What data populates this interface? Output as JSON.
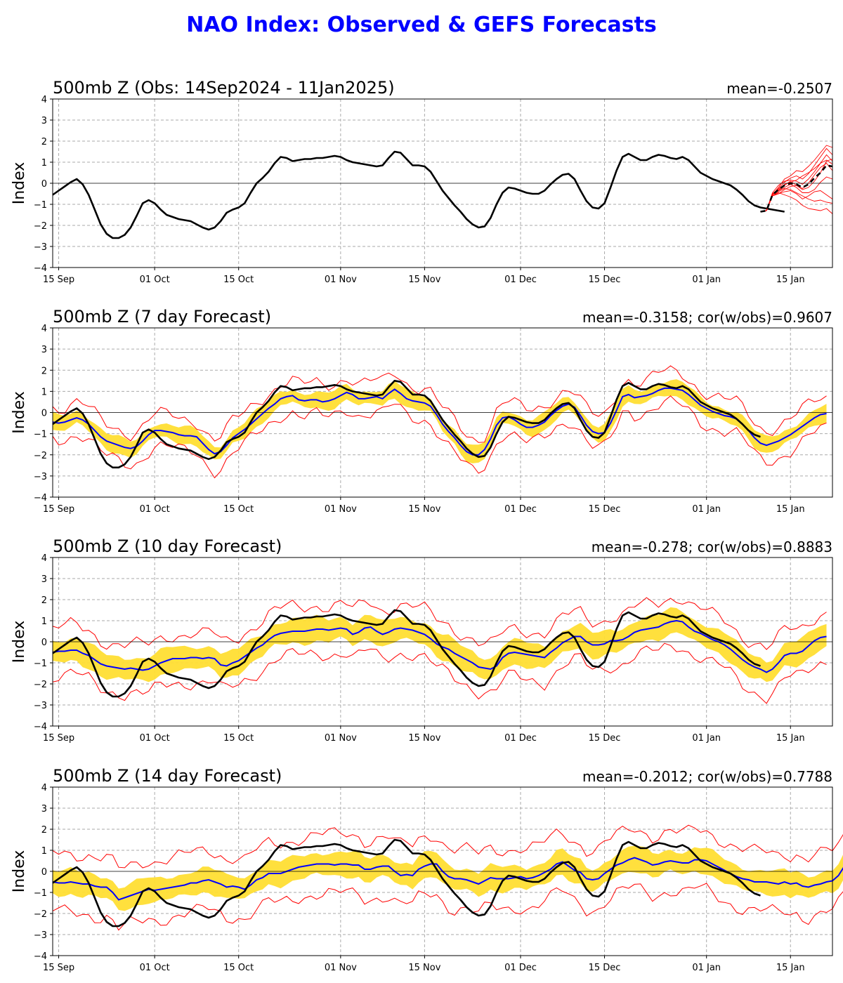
{
  "page": {
    "title": "NAO Index: Observed & GEFS Forecasts"
  },
  "chart_data": [
    {
      "type": "line",
      "title": "500mb Z (Obs: 14Sep2024 - 11Jan2025)",
      "stat": "mean=-0.2507",
      "ylabel": "Index",
      "x_ticks": [
        "15 Sep",
        "01 Oct",
        "15 Oct",
        "01 Nov",
        "15 Nov",
        "01 Dec",
        "15 Dec",
        "01 Jan",
        "15 Jan"
      ],
      "x_tick_days": [
        1,
        17,
        31,
        48,
        62,
        78,
        92,
        109,
        123
      ],
      "y_ticks": [
        -4,
        -3,
        -2,
        -1,
        0,
        1,
        2,
        3,
        4
      ],
      "xlim_days": [
        0,
        130
      ],
      "ylim": [
        -4,
        4
      ],
      "grid": true,
      "observed": [
        [
          -0.55,
          -0.35,
          -0.15,
          0.05,
          0.2,
          -0.05,
          -0.55,
          -1.25,
          -1.95,
          -2.4,
          -2.6,
          -2.6,
          -2.45,
          -2.1,
          -1.55,
          -0.95,
          -0.8,
          -0.95,
          -1.25,
          -1.5,
          -1.6,
          -1.7,
          -1.75,
          -1.8,
          -1.95,
          -2.1,
          -2.2,
          -2.1,
          -1.8,
          -1.4,
          -1.25,
          -1.15,
          -0.95,
          -0.45,
          0.0,
          0.25,
          0.55,
          0.95,
          1.25,
          1.2,
          1.05,
          1.1,
          1.15,
          1.15,
          1.2,
          1.2,
          1.25,
          1.3,
          1.25,
          1.1,
          1.0,
          0.95,
          0.9,
          0.85,
          0.8,
          0.85,
          1.2,
          1.5,
          1.45,
          1.15,
          0.85,
          0.85,
          0.8,
          0.55,
          0.1,
          -0.35,
          -0.7,
          -1.05,
          -1.35,
          -1.7,
          -1.95,
          -2.1,
          -2.05,
          -1.65,
          -1.0,
          -0.45,
          -0.2,
          -0.25,
          -0.35,
          -0.45,
          -0.5,
          -0.5,
          -0.35,
          -0.05,
          0.2,
          0.4,
          0.45,
          0.2,
          -0.35,
          -0.85,
          -1.15,
          -1.2,
          -0.95,
          -0.2,
          0.6,
          1.25,
          1.4,
          1.25,
          1.1,
          1.1,
          1.25,
          1.35,
          1.3,
          1.2,
          1.15,
          1.25,
          1.1,
          0.8,
          0.5,
          0.35,
          0.2,
          0.1,
          0.0,
          -0.1,
          -0.3,
          -0.55,
          -0.85,
          -1.05,
          -1.15,
          -1.2,
          -1.25,
          -1.3,
          -1.35
        ]
      ],
      "forecast_day_start": 118,
      "ensemble_mean_forecast": [
        -1.35,
        -1.3,
        -0.55,
        -0.3,
        -0.1,
        0.0,
        -0.05,
        -0.2,
        -0.05,
        0.25,
        0.5,
        0.85,
        0.8
      ],
      "ensemble_members": [
        [
          -1.35,
          -1.3,
          -0.6,
          -0.5,
          -0.3,
          -0.15,
          -0.1,
          -0.3,
          -0.2,
          0.1,
          0.5,
          1.05,
          1.15
        ],
        [
          -1.35,
          -1.3,
          -0.55,
          -0.2,
          0.2,
          0.35,
          0.6,
          0.55,
          0.8,
          1.1,
          1.45,
          1.8,
          1.7
        ],
        [
          -1.35,
          -1.3,
          -0.6,
          -0.45,
          -0.55,
          -0.65,
          -0.8,
          -1.05,
          -1.2,
          -1.25,
          -1.3,
          -1.2,
          -1.45
        ],
        [
          -1.35,
          -1.3,
          -0.5,
          -0.25,
          0.05,
          0.25,
          0.35,
          0.2,
          0.45,
          0.85,
          1.25,
          1.65,
          1.35
        ],
        [
          -1.35,
          -1.3,
          -0.55,
          -0.35,
          -0.2,
          -0.05,
          -0.2,
          -0.45,
          -0.45,
          -0.3,
          0.05,
          0.3,
          0.2
        ],
        [
          -1.35,
          -1.3,
          -0.45,
          -0.1,
          0.1,
          0.15,
          0.1,
          -0.05,
          0.2,
          0.55,
          0.95,
          1.35,
          1.05
        ],
        [
          -1.35,
          -1.3,
          -0.6,
          -0.4,
          -0.25,
          -0.3,
          -0.45,
          -0.6,
          -0.75,
          -0.85,
          -0.8,
          -0.9,
          -0.95
        ],
        [
          -1.35,
          -1.3,
          -0.55,
          -0.3,
          -0.05,
          0.05,
          0.15,
          0.35,
          0.5,
          0.7,
          0.95,
          1.1,
          0.9
        ],
        [
          -1.35,
          -1.3,
          -0.5,
          -0.35,
          -0.1,
          0.1,
          -0.1,
          -0.25,
          0.0,
          0.4,
          0.75,
          0.95,
          0.6
        ],
        [
          -1.35,
          -1.3,
          -0.6,
          -0.5,
          -0.4,
          -0.35,
          -0.5,
          -0.75,
          -0.6,
          -0.4,
          -0.35,
          -0.55,
          -0.75
        ]
      ]
    },
    {
      "type": "line",
      "title": "500mb Z (7 day Forecast)",
      "stat": "mean=-0.3158; cor(w/obs)=0.9607",
      "ylabel": "Index",
      "x_ticks": [
        "15 Sep",
        "01 Oct",
        "15 Oct",
        "01 Nov",
        "15 Nov",
        "01 Dec",
        "15 Dec",
        "01 Jan",
        "15 Jan"
      ],
      "x_tick_days": [
        1,
        17,
        31,
        48,
        62,
        78,
        92,
        109,
        123
      ],
      "y_ticks": [
        -4,
        -3,
        -2,
        -1,
        0,
        1,
        2,
        3,
        4
      ],
      "xlim_days": [
        0,
        130
      ],
      "ylim": [
        -4,
        4
      ],
      "grid": true,
      "forecast_mean": [
        -0.45,
        -0.5,
        -0.45,
        -0.35,
        -0.25,
        -0.35,
        -0.55,
        -0.85,
        -1.15,
        -1.35,
        -1.45,
        -1.55,
        -1.65,
        -1.7,
        -1.6,
        -1.35,
        -1.05,
        -0.85,
        -0.85,
        -0.9,
        -0.95,
        -1.05,
        -1.1,
        -1.1,
        -1.15,
        -1.45,
        -1.75,
        -1.95,
        -1.85,
        -1.55,
        -1.2,
        -1.0,
        -0.8,
        -0.55,
        -0.3,
        -0.05,
        0.2,
        0.4,
        0.65,
        0.75,
        0.8,
        0.6,
        0.55,
        0.6,
        0.6,
        0.5,
        0.55,
        0.65,
        0.8,
        0.95,
        0.85,
        0.65,
        0.65,
        0.7,
        0.75,
        0.65,
        0.9,
        1.1,
        0.9,
        0.65,
        0.55,
        0.5,
        0.45,
        0.3,
        -0.1,
        -0.55,
        -0.9,
        -1.2,
        -1.55,
        -1.85,
        -2.0,
        -2.0,
        -1.75,
        -1.25,
        -0.6,
        -0.25,
        -0.2,
        -0.35,
        -0.55,
        -0.7,
        -0.7,
        -0.6,
        -0.45,
        -0.15,
        0.1,
        0.3,
        0.4,
        0.25,
        -0.15,
        -0.6,
        -0.9,
        -1.0,
        -0.95,
        -0.5,
        0.1,
        0.75,
        0.85,
        0.7,
        0.75,
        0.8,
        0.9,
        1.05,
        1.15,
        1.15,
        1.1,
        1.05,
        0.85,
        0.6,
        0.35,
        0.2,
        0.05,
        -0.05,
        -0.15,
        -0.2,
        -0.3,
        -0.55,
        -0.85,
        -1.2,
        -1.45,
        -1.55,
        -1.45,
        -1.35,
        -1.2,
        -1.05,
        -0.85,
        -0.65,
        -0.45,
        -0.25,
        -0.1,
        -0.05
      ],
      "observed_day_end": 118,
      "band_halfwidth": 0.35,
      "spread_halfwidth": 0.75
    },
    {
      "type": "line",
      "title": "500mb Z (10 day Forecast)",
      "stat": "mean=-0.278; cor(w/obs)=0.8883",
      "ylabel": "Index",
      "x_ticks": [
        "15 Sep",
        "01 Oct",
        "15 Oct",
        "01 Nov",
        "15 Nov",
        "01 Dec",
        "15 Dec",
        "01 Jan",
        "15 Jan"
      ],
      "x_tick_days": [
        1,
        17,
        31,
        48,
        62,
        78,
        92,
        109,
        123
      ],
      "y_ticks": [
        -4,
        -3,
        -2,
        -1,
        0,
        1,
        2,
        3,
        4
      ],
      "xlim_days": [
        0,
        130
      ],
      "ylim": [
        -4,
        4
      ],
      "grid": true,
      "forecast_mean": [
        -0.5,
        -0.45,
        -0.45,
        -0.4,
        -0.4,
        -0.55,
        -0.65,
        -0.85,
        -1.05,
        -1.15,
        -1.2,
        -1.25,
        -1.3,
        -1.25,
        -1.3,
        -1.35,
        -1.3,
        -1.15,
        -1.0,
        -0.9,
        -0.8,
        -0.8,
        -0.8,
        -0.75,
        -0.75,
        -0.8,
        -0.75,
        -0.8,
        -1.1,
        -1.15,
        -1.0,
        -0.9,
        -0.7,
        -0.5,
        -0.3,
        -0.15,
        0.1,
        0.3,
        0.4,
        0.45,
        0.5,
        0.5,
        0.5,
        0.55,
        0.6,
        0.6,
        0.55,
        0.6,
        0.65,
        0.6,
        0.35,
        0.45,
        0.65,
        0.7,
        0.5,
        0.35,
        0.45,
        0.6,
        0.65,
        0.6,
        0.55,
        0.45,
        0.35,
        0.15,
        -0.1,
        -0.25,
        -0.35,
        -0.55,
        -0.7,
        -0.85,
        -1.0,
        -1.2,
        -1.25,
        -1.3,
        -1.15,
        -0.75,
        -0.55,
        -0.5,
        -0.55,
        -0.6,
        -0.65,
        -0.7,
        -0.75,
        -0.5,
        -0.3,
        -0.05,
        0.1,
        0.25,
        0.25,
        0.0,
        -0.15,
        -0.15,
        -0.1,
        0.05,
        0.05,
        0.1,
        0.25,
        0.45,
        0.55,
        0.6,
        0.65,
        0.7,
        0.85,
        0.95,
        1.0,
        0.95,
        0.7,
        0.5,
        0.4,
        0.25,
        0.1,
        0.0,
        -0.15,
        -0.35,
        -0.6,
        -0.85,
        -1.05,
        -1.2,
        -1.3,
        -1.45,
        -1.3,
        -1.0,
        -0.65,
        -0.55,
        -0.55,
        -0.45,
        -0.2,
        0.05,
        0.2,
        0.25
      ],
      "observed_day_end": 118,
      "band_halfwidth": 0.55,
      "spread_halfwidth": 1.15
    },
    {
      "type": "line",
      "title": "500mb Z (14 day Forecast)",
      "stat": "mean=-0.2012; cor(w/obs)=0.7788",
      "ylabel": "Index",
      "x_ticks": [
        "15 Sep",
        "01 Oct",
        "15 Oct",
        "01 Nov",
        "15 Nov",
        "01 Dec",
        "15 Dec",
        "01 Jan",
        "15 Jan"
      ],
      "x_tick_days": [
        1,
        17,
        31,
        48,
        62,
        78,
        92,
        109,
        123
      ],
      "y_ticks": [
        -4,
        -3,
        -2,
        -1,
        0,
        1,
        2,
        3,
        4
      ],
      "xlim_days": [
        0,
        130
      ],
      "ylim": [
        -4,
        4
      ],
      "grid": true,
      "forecast_mean": [
        -0.5,
        -0.55,
        -0.55,
        -0.5,
        -0.55,
        -0.6,
        -0.6,
        -0.7,
        -0.75,
        -0.75,
        -1.0,
        -1.35,
        -1.25,
        -1.15,
        -1.05,
        -0.95,
        -0.85,
        -0.9,
        -0.85,
        -0.8,
        -0.75,
        -0.7,
        -0.65,
        -0.55,
        -0.55,
        -0.45,
        -0.4,
        -0.5,
        -0.6,
        -0.75,
        -0.7,
        -0.75,
        -0.85,
        -0.65,
        -0.4,
        -0.3,
        -0.1,
        -0.1,
        -0.1,
        0.0,
        0.1,
        0.2,
        0.25,
        0.3,
        0.35,
        0.35,
        0.35,
        0.3,
        0.35,
        0.35,
        0.3,
        0.3,
        0.1,
        0.1,
        0.2,
        0.25,
        0.25,
        0.0,
        -0.2,
        -0.15,
        -0.2,
        0.1,
        0.25,
        0.35,
        0.35,
        0.0,
        -0.25,
        -0.35,
        -0.35,
        -0.4,
        -0.5,
        -0.6,
        -0.45,
        -0.3,
        -0.35,
        -0.35,
        -0.35,
        -0.3,
        -0.25,
        -0.35,
        -0.3,
        -0.2,
        -0.05,
        0.1,
        0.35,
        0.45,
        0.25,
        0.05,
        -0.05,
        -0.35,
        -0.4,
        -0.35,
        -0.1,
        0.1,
        0.3,
        0.4,
        0.55,
        0.65,
        0.55,
        0.45,
        0.3,
        0.35,
        0.45,
        0.5,
        0.45,
        0.4,
        0.4,
        0.55,
        0.55,
        0.5,
        0.35,
        0.2,
        0.05,
        -0.1,
        -0.25,
        -0.35,
        -0.4,
        -0.5,
        -0.5,
        -0.5,
        -0.55,
        -0.6,
        -0.5,
        -0.6,
        -0.55,
        -0.7,
        -0.75,
        -0.65,
        -0.6,
        -0.5,
        -0.45,
        -0.2,
        0.25,
        0.6,
        0.7,
        0.8
      ],
      "observed_day_end": 118,
      "band_halfwidth": 0.55,
      "spread_halfwidth": 1.4
    }
  ]
}
